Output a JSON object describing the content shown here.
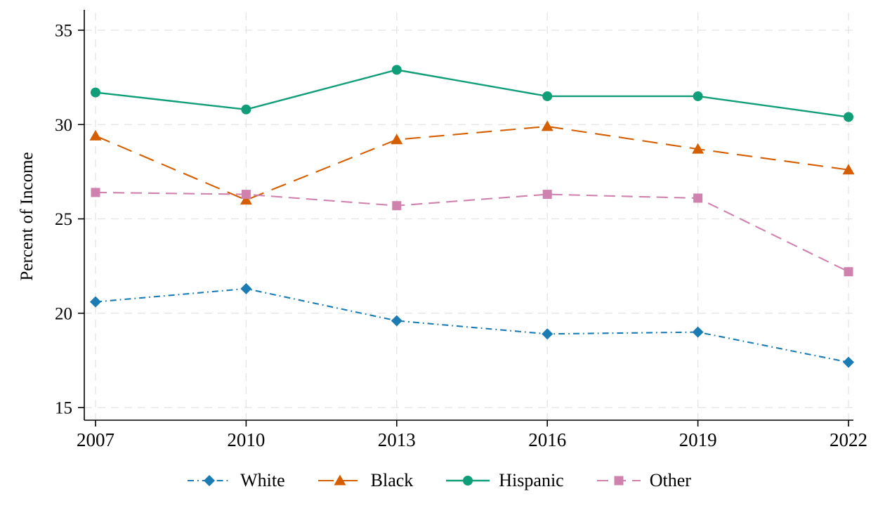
{
  "chart_data": {
    "type": "line",
    "title": "",
    "xlabel": "",
    "ylabel": "Percent of Income",
    "x": [
      "2007",
      "2010",
      "2013",
      "2016",
      "2019",
      "2022"
    ],
    "yticks": [
      15,
      20,
      25,
      30,
      35
    ],
    "ylim": [
      14.3,
      36.0
    ],
    "grid": true,
    "grid_color": "#e4e4e4",
    "axis_color": "#000000",
    "legend_position": "bottom",
    "series": [
      {
        "name": "White",
        "color": "#1b7bb3",
        "marker": "diamond",
        "dash": "dash-dot",
        "values": [
          20.6,
          21.3,
          19.6,
          18.9,
          19.0,
          17.4
        ]
      },
      {
        "name": "Black",
        "color": "#d55e00",
        "marker": "triangle",
        "dash": "long-dash",
        "values": [
          29.4,
          26.0,
          29.2,
          29.9,
          28.7,
          27.6
        ]
      },
      {
        "name": "Hispanic",
        "color": "#0f9e77",
        "marker": "circle",
        "dash": "solid",
        "values": [
          31.7,
          30.8,
          32.9,
          31.5,
          31.5,
          30.4
        ]
      },
      {
        "name": "Other",
        "color": "#cf82ae",
        "marker": "square",
        "dash": "dash",
        "values": [
          26.4,
          26.3,
          25.7,
          26.3,
          26.1,
          22.2
        ]
      }
    ]
  }
}
